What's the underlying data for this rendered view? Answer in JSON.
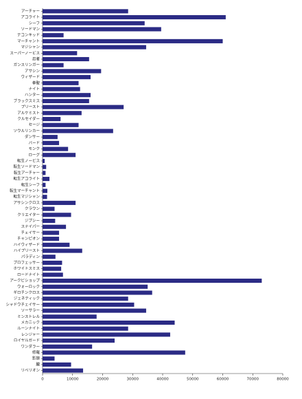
{
  "chart_data": {
    "type": "barh",
    "categories": [
      "アーチャー",
      "アコライト",
      "シーフ",
      "ソードマン",
      "テコンキッド",
      "マーチャント",
      "マジシャン",
      "スーパーノービス",
      "忍者",
      "ガンスリンガー",
      "アサシン",
      "ウィザード",
      "拳聖",
      "ナイト",
      "ハンター",
      "ブラックスミス",
      "プリースト",
      "アルケミスト",
      "クルセイダー",
      "セージ",
      "ソウルリンカー",
      "ダンサー",
      "バード",
      "モンク",
      "ローグ",
      "転生ノービス",
      "転生ソードマン",
      "転生アーチャー",
      "転生アコライト",
      "転生シーフ",
      "転生マーチャント",
      "転生マジシャン",
      "アサシンクロス",
      "クラウン",
      "クリエイター",
      "ジプシー",
      "スナイパー",
      "チェイサー",
      "チャンピオン",
      "ハイウィザード",
      "ハイプリースト",
      "パラディン",
      "プロフェッサー",
      "ホワイトスミス",
      "ロードナイト",
      "アークビショップ",
      "ウォーロック",
      "ギロチンクロス",
      "ジェネティック",
      "シャドウチェイサー",
      "ソーサラー",
      "ミンストレル",
      "メカニック",
      "ルーンナイト",
      "レンジャー",
      "ロイヤルガード",
      "ワンダラー",
      "修羅",
      "影狼",
      "朧",
      "リベリオン"
    ],
    "values": [
      28500,
      61000,
      34000,
      39500,
      7000,
      60000,
      34500,
      11500,
      15500,
      7000,
      19500,
      16000,
      12000,
      12500,
      16000,
      15500,
      27000,
      13000,
      6000,
      12000,
      23500,
      5000,
      5500,
      8500,
      11000,
      700,
      1200,
      1000,
      2300,
      1000,
      1600,
      1500,
      11000,
      4000,
      9500,
      4200,
      7800,
      5500,
      5500,
      9000,
      13200,
      4300,
      6500,
      6200,
      6800,
      73000,
      35000,
      36500,
      28500,
      30500,
      34500,
      18000,
      44000,
      28500,
      42500,
      24000,
      16500,
      47500,
      4000,
      9500,
      13500
    ],
    "color": "#2b2b85",
    "xlim": [
      0,
      80000
    ],
    "xticks": [
      0,
      10000,
      20000,
      30000,
      40000,
      50000,
      60000,
      70000,
      80000
    ]
  }
}
